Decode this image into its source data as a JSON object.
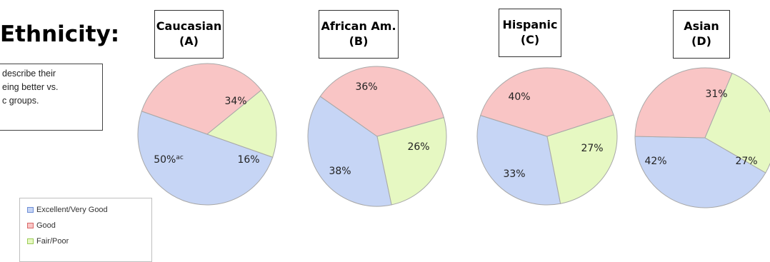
{
  "heading": "Ethnicity:",
  "note": [
    "describe their",
    "eing better vs.",
    "c groups."
  ],
  "legend": [
    {
      "label": "Excellent/Very Good",
      "color": "#c6d5f5",
      "border": "#6f8fd6"
    },
    {
      "label": "Good",
      "color": "#f9c5c5",
      "border": "#d96a6a"
    },
    {
      "label": "Fair/Poor",
      "color": "#e6f8c2",
      "border": "#9ccc58"
    }
  ],
  "colors": {
    "excellent_fill": "#c6d5f5",
    "good_fill": "#f9c5c5",
    "fair_fill": "#e6f8c2",
    "edge": "#a8a8a8"
  },
  "chart_data": [
    {
      "type": "pie",
      "title": [
        "Caucasian",
        "(A)"
      ],
      "slices": [
        {
          "name": "Excellent/Very Good",
          "value": 50,
          "label": "50%",
          "superscript": "ac"
        },
        {
          "name": "Good",
          "value": 34,
          "label": "34%",
          "superscript": ""
        },
        {
          "name": "Fair/Poor",
          "value": 16,
          "label": "16%",
          "superscript": ""
        }
      ]
    },
    {
      "type": "pie",
      "title": [
        "African Am.",
        "(B)"
      ],
      "slices": [
        {
          "name": "Excellent/Very Good",
          "value": 38,
          "label": "38%",
          "superscript": ""
        },
        {
          "name": "Good",
          "value": 36,
          "label": "36%",
          "superscript": ""
        },
        {
          "name": "Fair/Poor",
          "value": 26,
          "label": "26%",
          "superscript": ""
        }
      ]
    },
    {
      "type": "pie",
      "title": [
        "Hispanic",
        "(C)"
      ],
      "slices": [
        {
          "name": "Excellent/Very Good",
          "value": 33,
          "label": "33%",
          "superscript": ""
        },
        {
          "name": "Good",
          "value": 40,
          "label": "40%",
          "superscript": ""
        },
        {
          "name": "Fair/Poor",
          "value": 27,
          "label": "27%",
          "superscript": ""
        }
      ]
    },
    {
      "type": "pie",
      "title": [
        "Asian",
        "(D)"
      ],
      "slices": [
        {
          "name": "Excellent/Very Good",
          "value": 42,
          "label": "42%",
          "superscript": ""
        },
        {
          "name": "Good",
          "value": 31,
          "label": "31%",
          "superscript": ""
        },
        {
          "name": "Fair/Poor",
          "value": 27,
          "label": "27%",
          "superscript": ""
        }
      ]
    }
  ]
}
